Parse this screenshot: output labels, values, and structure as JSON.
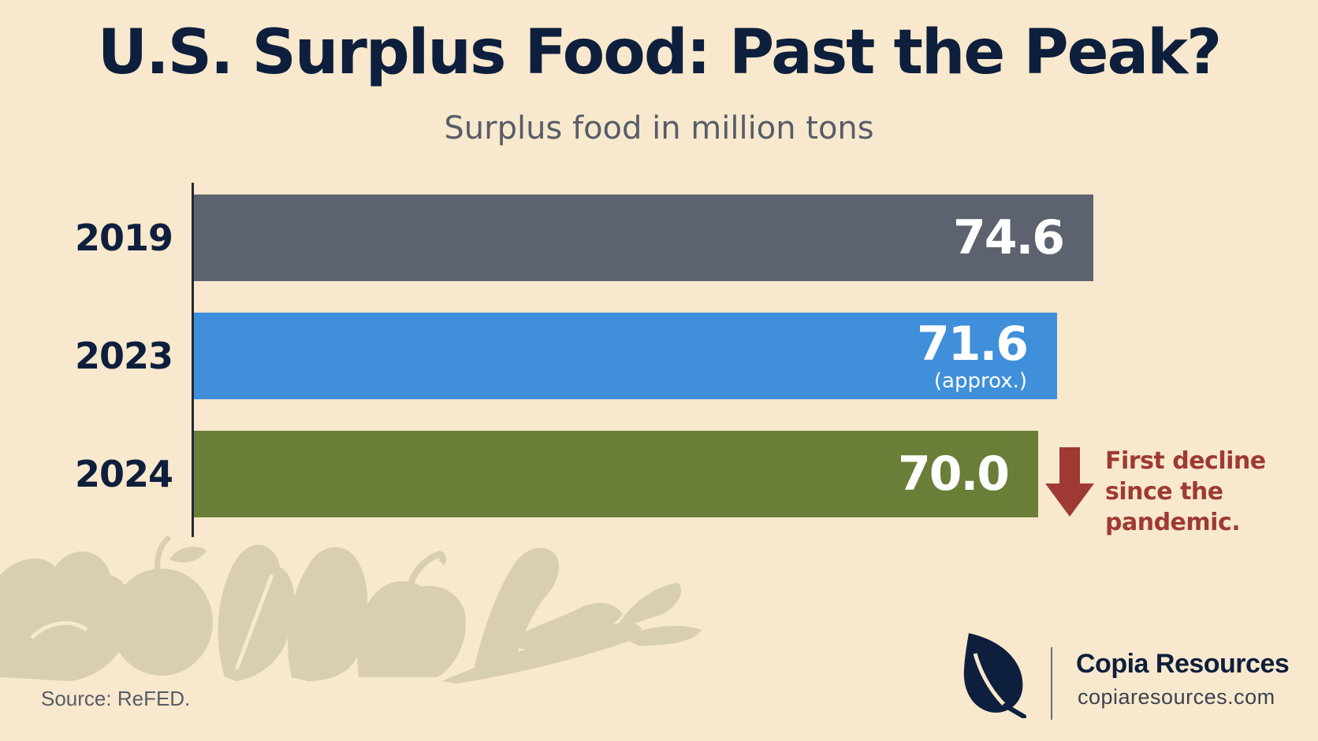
{
  "chart_data": {
    "type": "bar",
    "orientation": "horizontal",
    "title": "U.S. Surplus Food: Past the Peak?",
    "subtitle": "Surplus food in million tons",
    "categories": [
      "2019",
      "2023",
      "2024"
    ],
    "values": [
      74.6,
      71.6,
      70.0
    ],
    "value_labels": [
      "74.6",
      "71.6",
      "70.0"
    ],
    "value_notes": [
      "",
      "(approx.)",
      ""
    ],
    "bar_colors": [
      "#5c636e",
      "#3f8fda",
      "#6a7e38"
    ],
    "xlim": [
      0,
      80
    ],
    "grid": false,
    "annotation": "First decline\nsince the\npandemic.",
    "annotation_color": "#9e3a33"
  },
  "source": "Source: ReFED.",
  "brand": {
    "name": "Copia Resources",
    "url": "copiaresources.com",
    "icon": "leaf-icon",
    "color": "#0d1f3c"
  },
  "decoration": {
    "icon": "vegetables-illustration",
    "color": "#d8cfb0"
  }
}
